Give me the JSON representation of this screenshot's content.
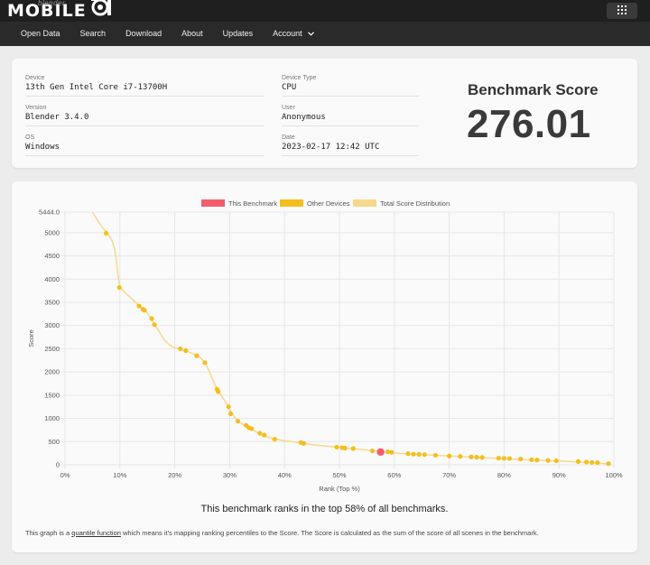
{
  "header": {
    "logo_text": "MOBILE",
    "logo_sub": "blender",
    "nav": [
      {
        "label": "Open Data"
      },
      {
        "label": "Search"
      },
      {
        "label": "Download"
      },
      {
        "label": "About"
      },
      {
        "label": "Updates"
      },
      {
        "label": "Account"
      }
    ]
  },
  "info": {
    "device_label": "Device",
    "device": "13th Gen Intel Core i7-13700H",
    "version_label": "Version",
    "version": "Blender 3.4.0",
    "os_label": "OS",
    "os": "Windows",
    "device_type_label": "Device Type",
    "device_type": "CPU",
    "user_label": "User",
    "user": "Anonymous",
    "date_label": "Date",
    "date": "2023-02-17 12:42 UTC",
    "score_title": "Benchmark Score",
    "score": "276.01"
  },
  "chart_data": {
    "type": "line",
    "xlabel": "Rank (Top %)",
    "ylabel": "Score",
    "xlim": [
      0,
      100
    ],
    "ylim": [
      0,
      5444.0
    ],
    "xticks": [
      "0%",
      "10%",
      "20%",
      "30%",
      "40%",
      "50%",
      "60%",
      "70%",
      "80%",
      "90%",
      "100%"
    ],
    "yticks": [
      "0",
      "500",
      "1000",
      "1500",
      "2000",
      "2500",
      "3000",
      "3500",
      "4000",
      "4500",
      "5000",
      "5444.0"
    ],
    "grid": true,
    "legend_position": "top",
    "legend": [
      {
        "name": "This Benchmark",
        "color": "#f25d6c"
      },
      {
        "name": "Other Devices",
        "color": "#f4be1e"
      },
      {
        "name": "Total Score Distribution",
        "color": "#f7d98a"
      }
    ],
    "distribution": [
      [
        5.0,
        5444
      ],
      [
        6.0,
        5250
      ],
      [
        7.0,
        5080
      ],
      [
        8.0,
        4950
      ],
      [
        8.8,
        4780
      ],
      [
        9.3,
        4500
      ],
      [
        9.6,
        4100
      ],
      [
        10.0,
        3820
      ],
      [
        11.0,
        3700
      ],
      [
        12.0,
        3600
      ],
      [
        13.0,
        3480
      ],
      [
        14.0,
        3380
      ],
      [
        15.0,
        3280
      ],
      [
        16.0,
        3080
      ],
      [
        17.0,
        2900
      ],
      [
        18.0,
        2700
      ],
      [
        19.0,
        2580
      ],
      [
        20.0,
        2520
      ],
      [
        21.0,
        2490
      ],
      [
        22.0,
        2460
      ],
      [
        23.0,
        2410
      ],
      [
        24.0,
        2350
      ],
      [
        25.0,
        2280
      ],
      [
        26.0,
        2100
      ],
      [
        27.0,
        1800
      ],
      [
        28.0,
        1580
      ],
      [
        29.0,
        1400
      ],
      [
        30.0,
        1200
      ],
      [
        31.0,
        1000
      ],
      [
        32.0,
        900
      ],
      [
        33.0,
        820
      ],
      [
        34.0,
        760
      ],
      [
        35.0,
        700
      ],
      [
        36.0,
        630
      ],
      [
        38.0,
        560
      ],
      [
        40.0,
        520
      ],
      [
        43.0,
        470
      ],
      [
        46.0,
        420
      ],
      [
        50.0,
        375
      ],
      [
        54.0,
        330
      ],
      [
        57.0,
        290
      ],
      [
        60.0,
        250
      ],
      [
        65.0,
        220
      ],
      [
        70.0,
        190
      ],
      [
        75.0,
        160
      ],
      [
        80.0,
        130
      ],
      [
        85.0,
        105
      ],
      [
        90.0,
        80
      ],
      [
        93.0,
        65
      ],
      [
        96.0,
        45
      ],
      [
        98.0,
        30
      ],
      [
        99.5,
        15
      ]
    ],
    "other_devices": [
      [
        7.5,
        4990
      ],
      [
        9.9,
        3820
      ],
      [
        13.5,
        3420
      ],
      [
        14.2,
        3350
      ],
      [
        14.5,
        3330
      ],
      [
        15.8,
        3150
      ],
      [
        16.3,
        3020
      ],
      [
        21.0,
        2500
      ],
      [
        22.0,
        2460
      ],
      [
        24.0,
        2350
      ],
      [
        25.5,
        2200
      ],
      [
        27.7,
        1630
      ],
      [
        27.9,
        1580
      ],
      [
        29.8,
        1250
      ],
      [
        30.2,
        1100
      ],
      [
        31.5,
        940
      ],
      [
        33.0,
        850
      ],
      [
        33.5,
        800
      ],
      [
        34.0,
        780
      ],
      [
        35.5,
        680
      ],
      [
        36.3,
        640
      ],
      [
        38.2,
        550
      ],
      [
        43.0,
        480
      ],
      [
        43.5,
        460
      ],
      [
        49.5,
        380
      ],
      [
        50.5,
        370
      ],
      [
        51.0,
        360
      ],
      [
        52.5,
        350
      ],
      [
        56.0,
        300
      ],
      [
        57.5,
        290
      ],
      [
        58.8,
        280
      ],
      [
        59.5,
        270
      ],
      [
        62.5,
        240
      ],
      [
        63.5,
        230
      ],
      [
        64.5,
        225
      ],
      [
        65.5,
        220
      ],
      [
        67.5,
        205
      ],
      [
        70.0,
        190
      ],
      [
        72.0,
        180
      ],
      [
        74.0,
        170
      ],
      [
        75.0,
        165
      ],
      [
        76.0,
        160
      ],
      [
        79.0,
        145
      ],
      [
        80.0,
        140
      ],
      [
        81.0,
        135
      ],
      [
        83.0,
        125
      ],
      [
        85.0,
        110
      ],
      [
        86.0,
        105
      ],
      [
        88.0,
        95
      ],
      [
        89.5,
        88
      ],
      [
        93.5,
        70
      ],
      [
        95.0,
        60
      ],
      [
        96.0,
        50
      ],
      [
        97.0,
        45
      ],
      [
        99.0,
        25
      ]
    ],
    "this_benchmark": [
      57.5,
      276.01
    ],
    "caption": "This benchmark ranks in the top 58% of all benchmarks.",
    "footnote_pre": "This graph is a ",
    "footnote_link": "quantile function",
    "footnote_post": " which means it's mapping ranking percentiles to the Score. The Score is calculated as the sum of the score of all scenes in the benchmark."
  }
}
